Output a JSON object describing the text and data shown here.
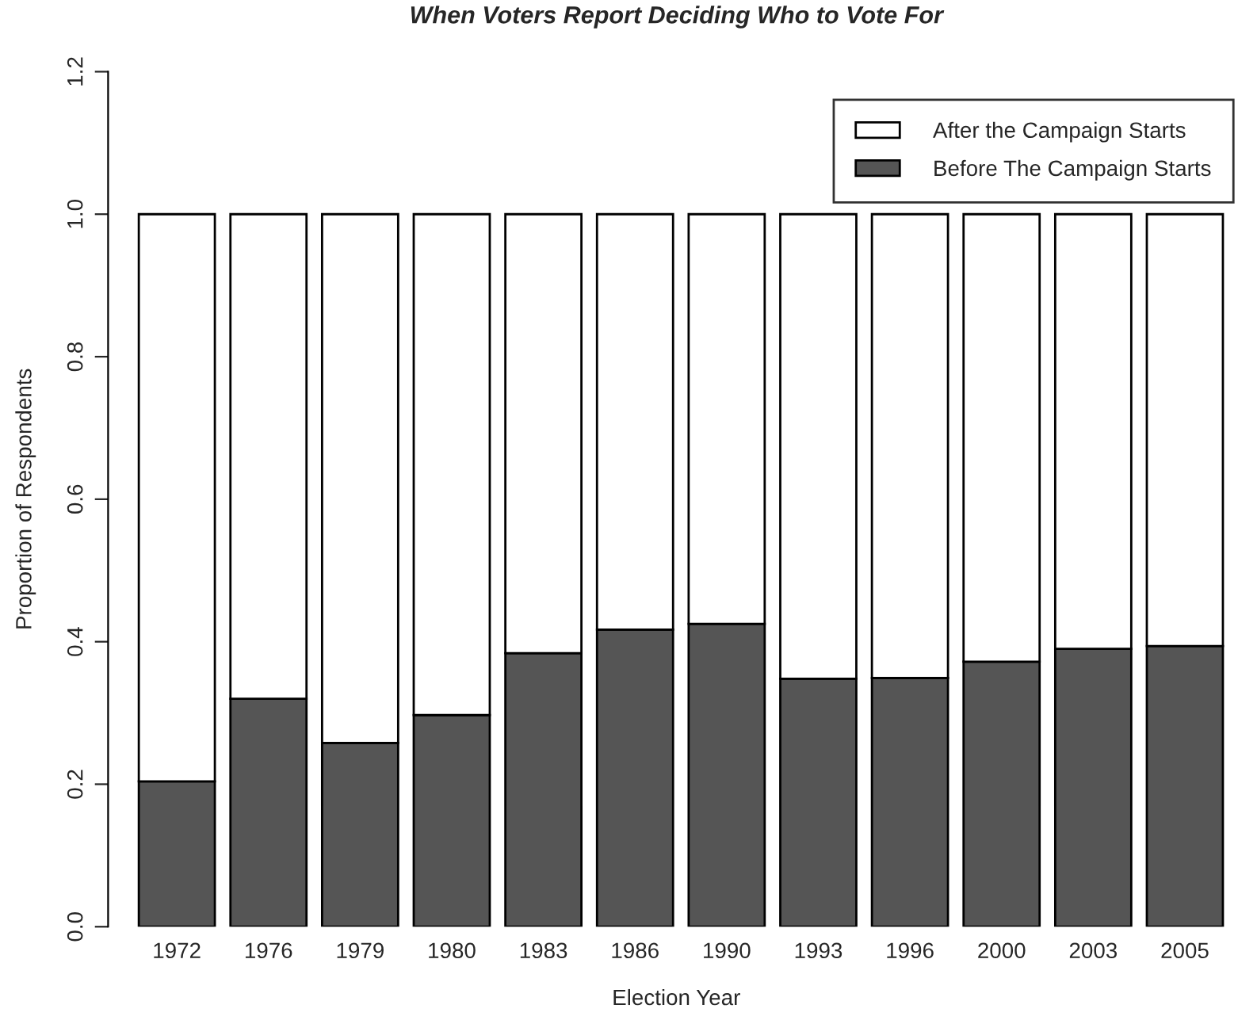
{
  "chart_data": {
    "type": "bar",
    "title": "When Voters Report Deciding Who to Vote For",
    "xlabel": "Election Year",
    "ylabel": "Proportion of Respondents",
    "categories": [
      "1972",
      "1976",
      "1979",
      "1980",
      "1983",
      "1986",
      "1990",
      "1993",
      "1996",
      "2000",
      "2003",
      "2005"
    ],
    "stacked": true,
    "series": [
      {
        "name": "Before The Campaign Starts",
        "color": "#555555",
        "values": [
          0.204,
          0.32,
          0.258,
          0.297,
          0.384,
          0.417,
          0.425,
          0.348,
          0.349,
          0.372,
          0.39,
          0.394
        ]
      },
      {
        "name": "After the Campaign Starts",
        "color": "#ffffff",
        "values": [
          0.796,
          0.68,
          0.742,
          0.703,
          0.616,
          0.583,
          0.575,
          0.652,
          0.651,
          0.628,
          0.61,
          0.606
        ]
      }
    ],
    "ylim": [
      0,
      1.2
    ],
    "yticks": [
      {
        "value": 0,
        "label": "0.0"
      },
      {
        "value": 0.2,
        "label": "0.2"
      },
      {
        "value": 0.4,
        "label": "0.4"
      },
      {
        "value": 0.6,
        "label": "0.6"
      },
      {
        "value": 0.8,
        "label": "0.8"
      },
      {
        "value": 1.0,
        "label": "1.0"
      },
      {
        "value": 1.2,
        "label": "1.2"
      }
    ],
    "legend": "top right",
    "grid": false
  }
}
